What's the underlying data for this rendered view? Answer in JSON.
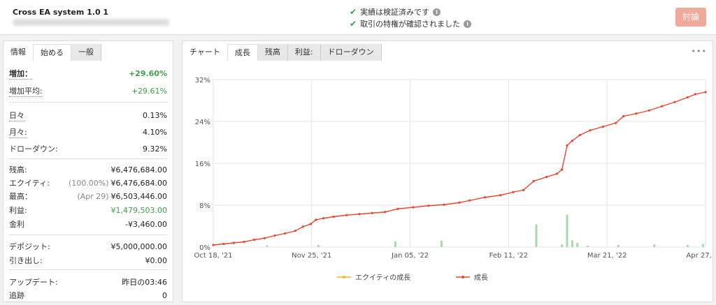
{
  "header": {
    "title": "Cross EA system 1.0 1",
    "verify1": "実績は検証済みです",
    "verify2": "取引の特権が確認されました",
    "discuss_label": "討論"
  },
  "left_tabs": [
    "情報",
    "始める",
    "一般"
  ],
  "stats": {
    "gain_label": "増加：",
    "gain_value": "+29.60%",
    "avg_gain_label": "増加平均:",
    "avg_gain_value": "+29.61%",
    "daily_label": "日々",
    "daily_value": "0.13%",
    "monthly_label": "月々:",
    "monthly_value": "4.10%",
    "drawdown_label": "ドローダウン:",
    "drawdown_value": "9.32%",
    "balance_label": "残高:",
    "balance_value": "¥6,476,684.00",
    "equity_label": "エクイティ:",
    "equity_note": "(100.00%)",
    "equity_value": "¥6,476,684.00",
    "highest_label": "最高：",
    "highest_note": "(Apr 29)",
    "highest_value": "¥6,503,446.00",
    "profit_label": "利益:",
    "profit_value": "¥1,479,503.00",
    "interest_label": "金利",
    "interest_value": "-¥3,460.00",
    "deposits_label": "デポジット:",
    "deposits_value": "¥5,000,000.00",
    "withdrawals_label": "引き出し:",
    "withdrawals_value": "¥0.00",
    "updated_label": "アップデート:",
    "updated_value": "昨日の03:46",
    "tracking_label": "追跡",
    "tracking_value": "0"
  },
  "chart_tabs": [
    "チャート",
    "成長",
    "残高",
    "利益:",
    "ドローダウン"
  ],
  "colors": {
    "growth": "#e8472f",
    "equity": "#f0b429",
    "bars": "#a5dba8"
  },
  "chart_data": {
    "type": "line",
    "title": "",
    "y_tick_labels": [
      "0%",
      "8%",
      "16%",
      "24%",
      "32%"
    ],
    "x_tick_labels": [
      "Oct 18, '21",
      "Nov 25, '21",
      "Jan 05, '22",
      "Feb 11, '22",
      "Mar 21, '22",
      "Apr 27, '22"
    ],
    "ylim": [
      0,
      32
    ],
    "x_range_days": [
      0,
      192
    ],
    "grid": true,
    "legend_position": "bottom",
    "series": [
      {
        "name": "エクイティの成長",
        "type": "line",
        "color": "#f0b429",
        "points": [
          [
            0,
            0.4
          ],
          [
            192,
            29.6
          ]
        ]
      },
      {
        "name": "成長",
        "type": "line",
        "color": "#e8472f",
        "points": [
          [
            0,
            0.4
          ],
          [
            4,
            0.6
          ],
          [
            8,
            0.8
          ],
          [
            12,
            1.0
          ],
          [
            16,
            1.4
          ],
          [
            20,
            1.7
          ],
          [
            24,
            2.2
          ],
          [
            28,
            2.6
          ],
          [
            32,
            3.1
          ],
          [
            35,
            3.9
          ],
          [
            38,
            4.4
          ],
          [
            40,
            5.2
          ],
          [
            43,
            5.5
          ],
          [
            47,
            5.8
          ],
          [
            52,
            6.1
          ],
          [
            57,
            6.3
          ],
          [
            62,
            6.5
          ],
          [
            67,
            6.7
          ],
          [
            72,
            7.3
          ],
          [
            78,
            7.6
          ],
          [
            84,
            7.9
          ],
          [
            90,
            8.1
          ],
          [
            96,
            8.5
          ],
          [
            100,
            8.9
          ],
          [
            106,
            9.5
          ],
          [
            112,
            9.9
          ],
          [
            117,
            10.5
          ],
          [
            121,
            10.9
          ],
          [
            125,
            12.6
          ],
          [
            130,
            13.4
          ],
          [
            134,
            14.0
          ],
          [
            136,
            14.8
          ],
          [
            138,
            19.4
          ],
          [
            140,
            20.3
          ],
          [
            143,
            21.4
          ],
          [
            147,
            22.3
          ],
          [
            152,
            23.0
          ],
          [
            157,
            23.7
          ],
          [
            160,
            25.0
          ],
          [
            165,
            25.5
          ],
          [
            170,
            26.1
          ],
          [
            175,
            26.9
          ],
          [
            180,
            27.7
          ],
          [
            185,
            28.6
          ],
          [
            188,
            29.2
          ],
          [
            192,
            29.6
          ]
        ]
      },
      {
        "name": "",
        "type": "bar",
        "color": "#a5dba8",
        "points": [
          [
            21,
            0.3
          ],
          [
            41,
            0.4
          ],
          [
            71,
            1.1
          ],
          [
            89,
            1.2
          ],
          [
            126,
            4.3
          ],
          [
            136,
            0.5
          ],
          [
            138,
            6.2
          ],
          [
            140,
            1.3
          ],
          [
            142,
            0.8
          ],
          [
            146,
            0.3
          ],
          [
            158,
            0.4
          ],
          [
            172,
            0.5
          ],
          [
            185,
            0.4
          ],
          [
            191,
            0.6
          ]
        ]
      }
    ]
  }
}
